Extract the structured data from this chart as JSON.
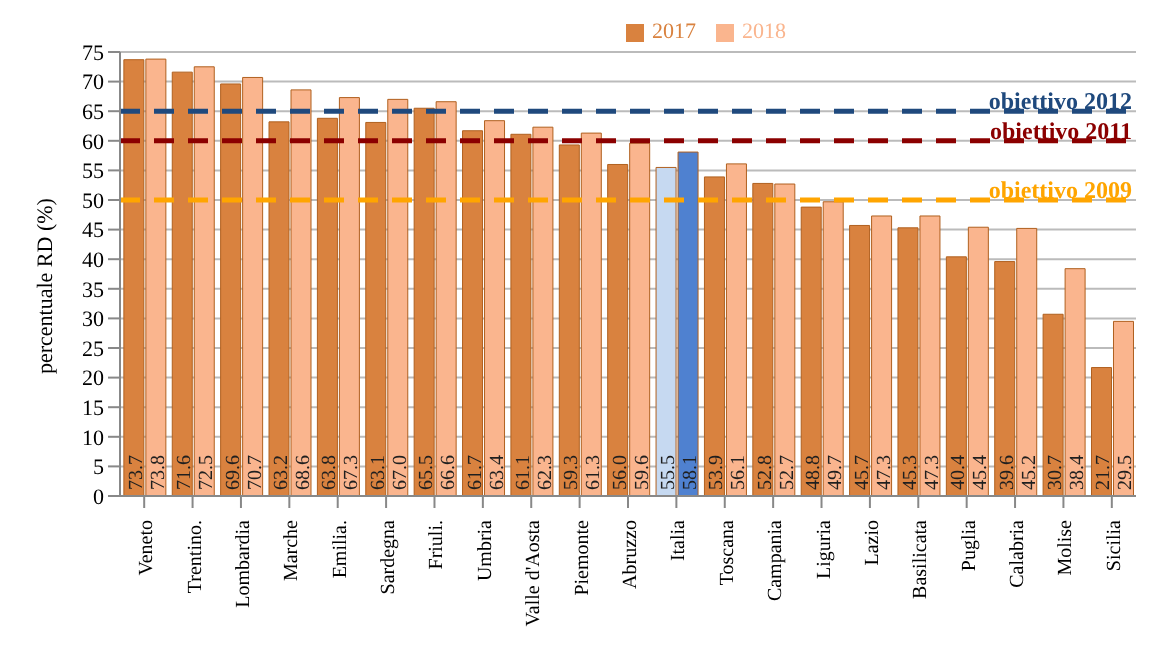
{
  "chart_data": {
    "type": "bar",
    "ylabel": "percentuale RD (%)",
    "categories": [
      "Veneto",
      "Trentino.",
      "Lombardia",
      "Marche",
      "Emilia.",
      "Sardegna",
      "Friuli.",
      "Umbria",
      "Valle d'Aosta",
      "Piemonte",
      "Abruzzo",
      "Italia",
      "Toscana",
      "Campania",
      "Liguria",
      "Lazio",
      "Basilicata",
      "Puglia",
      "Calabria",
      "Molise",
      "Sicilia"
    ],
    "series": [
      {
        "name": "2017",
        "color": "#d9823f",
        "colors": [
          "#d9823f",
          "#d9823f",
          "#d9823f",
          "#d9823f",
          "#d9823f",
          "#d9823f",
          "#d9823f",
          "#d9823f",
          "#d9823f",
          "#d9823f",
          "#d9823f",
          "#c6d9f1",
          "#d9823f",
          "#d9823f",
          "#d9823f",
          "#d9823f",
          "#d9823f",
          "#d9823f",
          "#d9823f",
          "#d9823f",
          "#d9823f"
        ],
        "values": [
          73.7,
          71.6,
          69.6,
          63.2,
          63.8,
          63.1,
          65.5,
          61.7,
          61.1,
          59.3,
          56.0,
          55.5,
          53.9,
          52.8,
          48.8,
          45.7,
          45.3,
          40.4,
          39.6,
          30.7,
          21.7
        ],
        "value_labels": [
          "73.7",
          "71.6",
          "69.6",
          "63.2",
          "63.8",
          "63.1",
          "65.5",
          "61.7",
          "61.1",
          "59.3",
          "56.0",
          "55.5",
          "53.9",
          "52.8",
          "48.8",
          "45.7",
          "45.3",
          "40.4",
          "39.6",
          "30.7",
          "21.7"
        ]
      },
      {
        "name": "2018",
        "color": "#fab58e",
        "colors": [
          "#fab58e",
          "#fab58e",
          "#fab58e",
          "#fab58e",
          "#fab58e",
          "#fab58e",
          "#fab58e",
          "#fab58e",
          "#fab58e",
          "#fab58e",
          "#fab58e",
          "#4f81d0",
          "#fab58e",
          "#fab58e",
          "#fab58e",
          "#fab58e",
          "#fab58e",
          "#fab58e",
          "#fab58e",
          "#fab58e",
          "#fab58e"
        ],
        "values": [
          73.8,
          72.5,
          70.7,
          68.6,
          67.3,
          67.0,
          66.6,
          63.4,
          62.3,
          61.3,
          59.6,
          58.1,
          56.1,
          52.7,
          49.7,
          47.3,
          47.3,
          45.4,
          45.2,
          38.4,
          29.5
        ],
        "value_labels": [
          "73.8",
          "72.5",
          "70.7",
          "68.6",
          "67.3",
          "67.0",
          "66.6",
          "63.4",
          "62.3",
          "61.3",
          "59.6",
          "58.1",
          "56.1",
          "52.7",
          "49.7",
          "47.3",
          "47.3",
          "45.4",
          "45.2",
          "38.4",
          "29.5"
        ]
      }
    ],
    "ylim": [
      0,
      75
    ],
    "yticks": [
      0,
      5,
      10,
      15,
      20,
      25,
      30,
      35,
      40,
      45,
      50,
      55,
      60,
      65,
      70,
      75
    ],
    "grid": "y",
    "legend": "top",
    "ref_lines": [
      {
        "axis": "y",
        "value": 65,
        "label": "obiettivo 2012",
        "color": "#1f497d",
        "line_style": "dashed"
      },
      {
        "axis": "y",
        "value": 60,
        "label": "obiettivo 2011",
        "color": "#8b0000",
        "line_style": "dashed"
      },
      {
        "axis": "y",
        "value": 50,
        "label": "obiettivo 2009",
        "color": "#ffa500",
        "line_style": "dashed"
      }
    ]
  }
}
